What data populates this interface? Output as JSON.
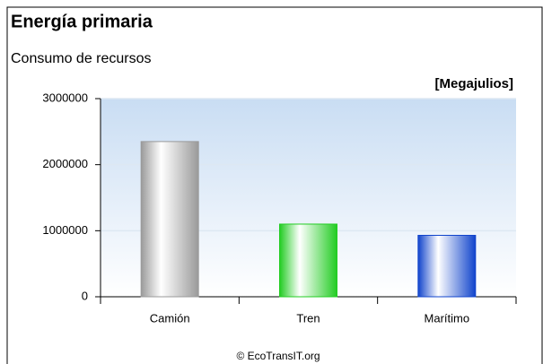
{
  "chart_data": {
    "type": "bar",
    "title": "Energía primaria",
    "subtitle": "Consumo de recursos",
    "unit_label": "[Megajulios]",
    "footer": "© EcoTransIT.org",
    "categories": [
      "Camión",
      "Tren",
      "Marítimo"
    ],
    "values": [
      2350000,
      1100000,
      930000
    ],
    "colors": [
      "#9a9a9a",
      "#22cc22",
      "#1144cc"
    ],
    "ylim": [
      0,
      3000000
    ],
    "yticks": [
      0,
      1000000,
      2000000,
      3000000
    ],
    "grid": true
  }
}
